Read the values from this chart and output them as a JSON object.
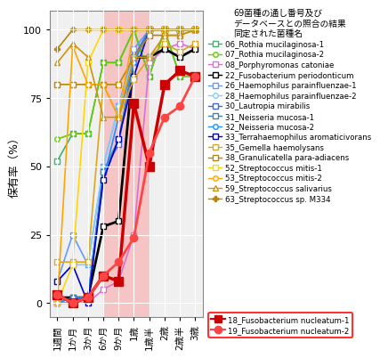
{
  "x_labels": [
    "1週間",
    "1か月",
    "3か月",
    "6か月",
    "9か月",
    "1歳",
    "1歳半",
    "2歳",
    "2歳半",
    "3歳"
  ],
  "x_positions": [
    0,
    1,
    2,
    3,
    4,
    5,
    6,
    7,
    8,
    9
  ],
  "bg_color": "#f0f0f0",
  "shaded_region": [
    3,
    6
  ],
  "shaded_color": "#f5c5c5",
  "legend_title": "69菌種の通し番号及び\nデータベースとの照合の結果\n同定された菌種名",
  "ylabel": "保有率（%）",
  "series": [
    {
      "id": "06",
      "label": "06_Rothia mucilaginosa-1",
      "color": "#3cb371",
      "marker": "s",
      "markersize": 4,
      "linewidth": 1.2,
      "markerfacecolor": "white",
      "highlight": false,
      "data": [
        52,
        62,
        62,
        88,
        88,
        100,
        83,
        100,
        83,
        83
      ]
    },
    {
      "id": "07",
      "label": "07_Rothia mucilaginosa-2",
      "color": "#66cd00",
      "marker": "o",
      "markersize": 4,
      "linewidth": 1.2,
      "markerfacecolor": "white",
      "highlight": false,
      "data": [
        60,
        62,
        62,
        88,
        88,
        100,
        83,
        100,
        83,
        83
      ]
    },
    {
      "id": "08",
      "label": "08_Porphyromonas catoniae",
      "color": "#da70d6",
      "marker": "s",
      "markersize": 4,
      "linewidth": 1.2,
      "markerfacecolor": "white",
      "highlight": false,
      "data": [
        0,
        0,
        0,
        5,
        8,
        25,
        88,
        93,
        95,
        93
      ]
    },
    {
      "id": "22",
      "label": "22_Fusobacterium periodonticum",
      "color": "#000000",
      "marker": "s",
      "markersize": 5,
      "linewidth": 2.0,
      "markerfacecolor": "white",
      "highlight": false,
      "data": [
        2,
        2,
        2,
        28,
        30,
        90,
        90,
        93,
        90,
        93
      ]
    },
    {
      "id": "26",
      "label": "26_Haemophilus parainfluenzae-1",
      "color": "#6699ff",
      "marker": "s",
      "markersize": 4,
      "linewidth": 1.2,
      "markerfacecolor": "white",
      "highlight": false,
      "data": [
        8,
        25,
        14,
        50,
        72,
        93,
        100,
        100,
        100,
        100
      ]
    },
    {
      "id": "28",
      "label": "28_Haemophilus parainfluenzae-2",
      "color": "#87cefa",
      "marker": "o",
      "markersize": 4,
      "linewidth": 1.2,
      "markerfacecolor": "white",
      "highlight": false,
      "data": [
        8,
        14,
        14,
        50,
        72,
        90,
        100,
        100,
        100,
        100
      ]
    },
    {
      "id": "30",
      "label": "30_Lautropia mirabilis",
      "color": "#4169e1",
      "marker": "s",
      "markersize": 4,
      "linewidth": 1.2,
      "markerfacecolor": "white",
      "highlight": false,
      "data": [
        0,
        0,
        2,
        48,
        58,
        90,
        100,
        100,
        100,
        100
      ]
    },
    {
      "id": "31",
      "label": "31_Neisseria mucosa-1",
      "color": "#4682b4",
      "marker": "s",
      "markersize": 4,
      "linewidth": 1.2,
      "markerfacecolor": "white",
      "highlight": false,
      "data": [
        0,
        2,
        2,
        48,
        60,
        88,
        100,
        100,
        100,
        100
      ]
    },
    {
      "id": "32",
      "label": "32_Neisseria mucosa-2",
      "color": "#1e90ff",
      "marker": "o",
      "markersize": 4,
      "linewidth": 1.2,
      "markerfacecolor": "white",
      "highlight": false,
      "data": [
        0,
        2,
        2,
        45,
        68,
        88,
        100,
        100,
        100,
        100
      ]
    },
    {
      "id": "33",
      "label": "33_Terrahaemophilus aromaticivorans",
      "color": "#0000cd",
      "marker": "s",
      "markersize": 4,
      "linewidth": 1.2,
      "markerfacecolor": "white",
      "highlight": false,
      "data": [
        8,
        14,
        0,
        45,
        60,
        83,
        100,
        100,
        100,
        100
      ]
    },
    {
      "id": "35",
      "label": "35_Gemella haemolysans",
      "color": "#daa520",
      "marker": "s",
      "markersize": 4,
      "linewidth": 1.2,
      "markerfacecolor": "white",
      "highlight": false,
      "data": [
        15,
        15,
        15,
        80,
        68,
        82,
        90,
        95,
        92,
        95
      ]
    },
    {
      "id": "38",
      "label": "38_Granulicatella para-adiacens",
      "color": "#b8860b",
      "marker": "s",
      "markersize": 4,
      "linewidth": 1.2,
      "markerfacecolor": "white",
      "highlight": false,
      "data": [
        80,
        80,
        80,
        80,
        80,
        90,
        98,
        98,
        98,
        100
      ]
    },
    {
      "id": "52",
      "label": "52_Streptococcus mitis-1",
      "color": "#ffd700",
      "marker": "s",
      "markersize": 4,
      "linewidth": 1.2,
      "markerfacecolor": "white",
      "highlight": false,
      "data": [
        0,
        14,
        88,
        100,
        100,
        100,
        100,
        100,
        100,
        100
      ]
    },
    {
      "id": "53",
      "label": "53_Streptococcus mitis-2",
      "color": "#ffa500",
      "marker": "o",
      "markersize": 4,
      "linewidth": 1.2,
      "markerfacecolor": "white",
      "highlight": false,
      "data": [
        0,
        94,
        80,
        80,
        68,
        100,
        100,
        100,
        100,
        100
      ]
    },
    {
      "id": "59",
      "label": "59_Streptococcus salivarius",
      "color": "#cd950c",
      "marker": "^",
      "markersize": 5,
      "linewidth": 1.2,
      "markerfacecolor": "white",
      "highlight": false,
      "data": [
        88,
        95,
        90,
        68,
        68,
        90,
        90,
        98,
        98,
        100
      ]
    },
    {
      "id": "63",
      "label": "63_Streptococcus sp. M334",
      "color": "#b8860b",
      "marker": "P",
      "markersize": 5,
      "linewidth": 1.2,
      "markerfacecolor": "#b8860b",
      "highlight": false,
      "data": [
        93,
        100,
        100,
        100,
        100,
        100,
        100,
        100,
        100,
        100
      ]
    },
    {
      "id": "18",
      "label": "18_Fusobacterium nucleatum-1",
      "color": "#cc0000",
      "marker": "s",
      "markersize": 7,
      "linewidth": 2.5,
      "markerfacecolor": "#cc0000",
      "highlight": true,
      "data": [
        3,
        0,
        2,
        10,
        8,
        73,
        50,
        80,
        85,
        83
      ]
    },
    {
      "id": "19",
      "label": "19_Fusobacterium nucleatum-2",
      "color": "#ff4444",
      "marker": "o",
      "markersize": 6,
      "linewidth": 2.0,
      "markerfacecolor": "#ff4444",
      "highlight": true,
      "data": [
        3,
        0,
        2,
        10,
        15,
        24,
        55,
        68,
        72,
        83
      ]
    }
  ]
}
